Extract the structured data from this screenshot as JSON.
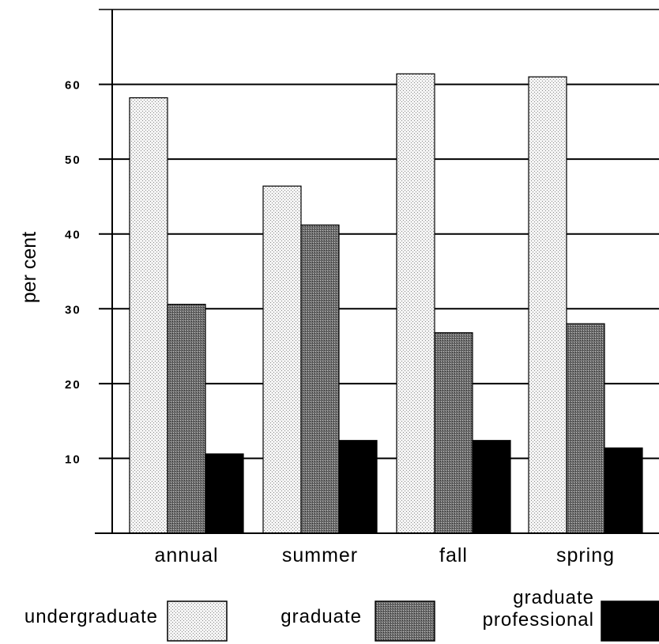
{
  "chart_data": {
    "type": "bar",
    "title": "",
    "xlabel": "",
    "ylabel": "per cent",
    "ylim": [
      0,
      70
    ],
    "yticks": [
      10,
      20,
      30,
      40,
      50,
      60
    ],
    "grid": true,
    "legend_position": "bottom",
    "categories": [
      "annual",
      "summer",
      "fall",
      "spring"
    ],
    "series": [
      {
        "name": "undergraduate",
        "values": [
          58.2,
          46.4,
          61.4,
          61.0
        ],
        "color": "#e2e2e2",
        "pattern": "light-dots"
      },
      {
        "name": "graduate",
        "values": [
          30.6,
          41.2,
          26.8,
          28.0
        ],
        "color": "#8a8a8a",
        "pattern": "dark-dots"
      },
      {
        "name": "graduate\nprofessional",
        "values": [
          10.6,
          12.4,
          12.4,
          11.4
        ],
        "color": "#000000",
        "pattern": "solid"
      }
    ],
    "legend": [
      {
        "label": "undergraduate",
        "lines": [
          "undergraduate"
        ]
      },
      {
        "label": "graduate",
        "lines": [
          "graduate"
        ]
      },
      {
        "label": "graduate professional",
        "lines": [
          "graduate",
          "professional"
        ]
      }
    ]
  }
}
